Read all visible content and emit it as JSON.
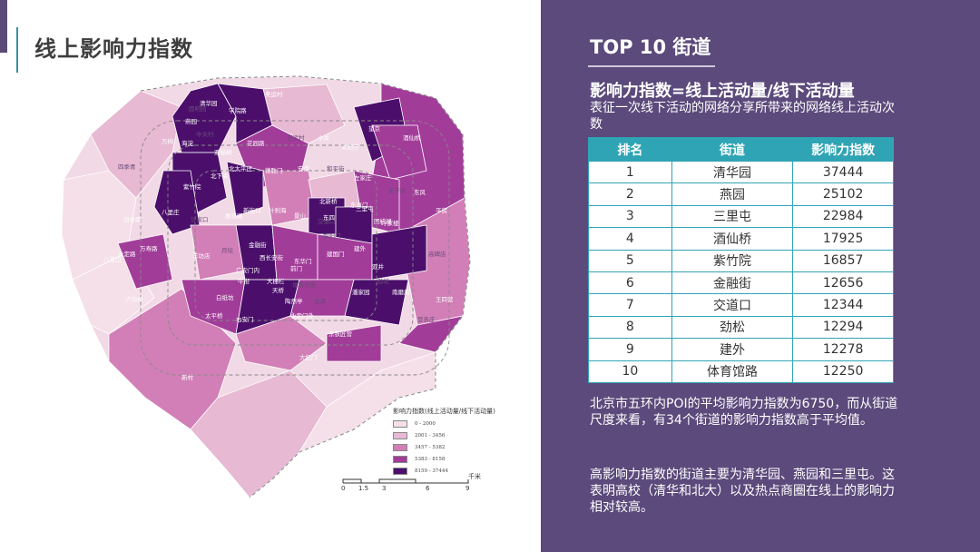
{
  "slide": {
    "title": "线上影响力指数"
  },
  "map": {
    "labels": [
      "圆明园",
      "清华园",
      "学院路",
      "奥运村",
      "燕园",
      "中关村",
      "海淀",
      "万柳",
      "双榆树",
      "花园路",
      "亚运村",
      "小关",
      "太阳宫",
      "望京",
      "酒仙桥",
      "四季青",
      "紫竹院",
      "北太平庄",
      "德胜门",
      "安贞",
      "和平街",
      "左家庄",
      "北下关",
      "新街口",
      "什刹海",
      "交道口",
      "北新桥",
      "东直门",
      "三里屯",
      "团结湖",
      "麦子店",
      "东风",
      "平房",
      "田村路",
      "八里庄",
      "甘家口",
      "展览路",
      "金融街",
      "景山",
      "东四",
      "朝阳门",
      "呼家楼",
      "永定路",
      "万寿路",
      "羊坊店",
      "月坛",
      "西长安街",
      "东华门",
      "建国门",
      "建外",
      "高碑店",
      "八宝山",
      "广安门内",
      "前门",
      "双井",
      "劲松",
      "卢沟桥",
      "牛街",
      "大栅栏",
      "天桥",
      "体育馆路",
      "潘家园",
      "王四营",
      "白纸坊",
      "陶然亭",
      "龙潭",
      "太平桥",
      "右安门",
      "永定门外",
      "南磨房",
      "豆各庄",
      "新村",
      "东铁匠营",
      "大红门"
    ],
    "legend_title": "影响力指数(线上活动量/线下活动量)",
    "legend": [
      {
        "label": "0 - 2000",
        "color": "#f5dfe8"
      },
      {
        "label": "2001 - 3456",
        "color": "#e7b9d3"
      },
      {
        "label": "3457 - 5382",
        "color": "#d27fb7"
      },
      {
        "label": "5383 - 8158",
        "color": "#a23c99"
      },
      {
        "label": "8159 - 37444",
        "color": "#4b0f6b"
      }
    ],
    "scale_unit": "千米",
    "scale_ticks": [
      "0",
      "1.5",
      "3",
      "6",
      "9"
    ]
  },
  "panel": {
    "title": "TOP 10 街道",
    "formula": "影响力指数=线上活动量/线下活动量",
    "formula_desc": "表征一次线下活动的网络分享所带来的网络线上活动次数",
    "table": {
      "headers": [
        "排名",
        "街道",
        "影响力指数"
      ],
      "rows": [
        [
          "1",
          "清华园",
          "37444"
        ],
        [
          "2",
          "燕园",
          "25102"
        ],
        [
          "3",
          "三里屯",
          "22984"
        ],
        [
          "4",
          "酒仙桥",
          "17925"
        ],
        [
          "5",
          "紫竹院",
          "16857"
        ],
        [
          "6",
          "金融街",
          "12656"
        ],
        [
          "7",
          "交道口",
          "12344"
        ],
        [
          "8",
          "劲松",
          "12294"
        ],
        [
          "9",
          "建外",
          "12278"
        ],
        [
          "10",
          "体育馆路",
          "12250"
        ]
      ]
    },
    "para1": "北京市五环内POI的平均影响力指数为6750，而从街道尺度来看，有34个街道的影响力指数高于平均值。",
    "para2": "高影响力指数的街道主要为清华园、燕园和三里屯。这表明高校（清华和北大）以及热点商圈在线上的影响力相对较高。"
  },
  "colors": {
    "panel_bg": "#5b4a7b",
    "table_header": "#2fa4b5",
    "accent": "#5b4a78"
  }
}
